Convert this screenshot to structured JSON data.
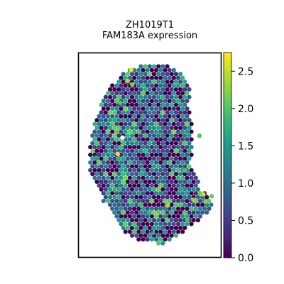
{
  "chart_data": {
    "type": "scatter",
    "title": "ZH1019T1",
    "subtitle": "FAM183A expression",
    "xlabel": "",
    "ylabel": "",
    "colorbar": {
      "colormap": "viridis",
      "range": [
        0.0,
        2.75
      ],
      "ticks": [
        0.0,
        0.5,
        1.0,
        1.5,
        2.0,
        2.5
      ],
      "tick_labels": [
        "0.0",
        "0.5",
        "1.0",
        "1.5",
        "2.0",
        "2.5"
      ]
    },
    "grid": false,
    "legend": "none",
    "points": [
      {
        "x": 37,
        "y": 4,
        "value": 2.7
      },
      {
        "x": 34,
        "y": 10,
        "value": 2.4
      },
      {
        "x": 38,
        "y": 12,
        "value": 2.2
      },
      {
        "x": 28,
        "y": 22,
        "value": 2.0
      },
      {
        "x": 22,
        "y": 33,
        "value": 2.1
      },
      {
        "x": 30,
        "y": 41,
        "value": 0.0
      },
      {
        "x": 26,
        "y": 50,
        "value": 2.7
      },
      {
        "x": 8,
        "y": 52,
        "value": 1.6
      },
      {
        "x": 72,
        "y": 38,
        "value": 2.3
      },
      {
        "x": 93,
        "y": 40,
        "value": 2.0
      },
      {
        "x": 81,
        "y": 59,
        "value": 2.0
      },
      {
        "x": 62,
        "y": 67,
        "value": 2.1
      },
      {
        "x": 67,
        "y": 78,
        "value": 2.4
      },
      {
        "x": 52,
        "y": 82,
        "value": 1.8
      },
      {
        "x": 88,
        "y": 75,
        "value": 2.3
      },
      {
        "x": 96,
        "y": 72,
        "value": 2.5
      },
      {
        "x": 98,
        "y": 76,
        "value": 2.2
      },
      {
        "x": 103,
        "y": 73,
        "value": 2.1
      },
      {
        "x": 83,
        "y": 86,
        "value": 2.0
      },
      {
        "x": 40,
        "y": 89,
        "value": 2.0
      },
      {
        "x": 55,
        "y": 93,
        "value": 1.7
      }
    ],
    "background_points": {
      "count": 1010,
      "value_range": [
        0.0,
        2.2
      ],
      "typical_value": 0.8
    }
  },
  "colors": {
    "viridis_stops": [
      "#440154",
      "#482878",
      "#3e4989",
      "#31688e",
      "#26828e",
      "#1f9e89",
      "#35b779",
      "#6ece58",
      "#b5de2b",
      "#fde725"
    ],
    "missing_spot": "#ffffff",
    "frame": "#000000"
  }
}
